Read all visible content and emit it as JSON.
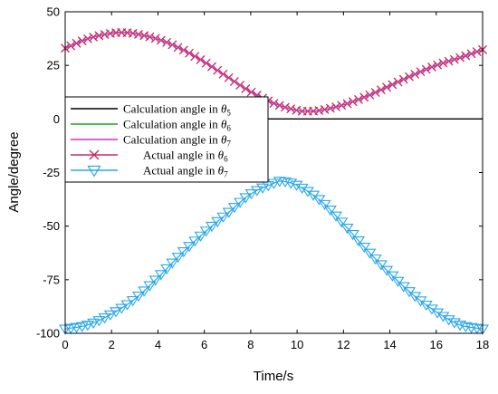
{
  "chart_data": {
    "type": "line",
    "xlabel": "Time/s",
    "ylabel": "Angle/degree",
    "xlim": [
      0,
      18
    ],
    "ylim": [
      -100,
      50
    ],
    "x_ticks": [
      "0",
      "2",
      "4",
      "6",
      "8",
      "10",
      "12",
      "14",
      "16",
      "18"
    ],
    "y_ticks": [
      "-100",
      "-75",
      "-50",
      "-25",
      "0",
      "25",
      "50"
    ],
    "legend_position": "upper-left",
    "series": [
      {
        "name": "Calculation angle in θ5",
        "legend": {
          "main": "Calculation angle in ",
          "theta": "θ",
          "sub": "5"
        },
        "color": "#000000",
        "marker": "none",
        "x": [
          0,
          18
        ],
        "y": [
          0,
          0
        ]
      },
      {
        "name": "Calculation angle in θ6",
        "legend": {
          "main": "Calculation angle in ",
          "theta": "θ",
          "sub": "6"
        },
        "color": "#1aa51a",
        "marker": "none",
        "x": [
          0,
          1,
          2,
          2.5,
          3,
          4,
          5,
          6,
          7,
          8,
          9,
          10,
          10.5,
          11,
          12,
          13,
          14,
          15,
          16,
          17,
          18
        ],
        "y": [
          33,
          37.5,
          40,
          40.3,
          39.8,
          37.2,
          32.7,
          26.6,
          19.6,
          12.7,
          7.3,
          4,
          3.6,
          4,
          6.6,
          10.6,
          15.5,
          20.5,
          25,
          28.5,
          32.3
        ]
      },
      {
        "name": "Calculation angle in θ7",
        "legend": {
          "main": "Calculation angle in ",
          "theta": "θ",
          "sub": "7"
        },
        "color": "#cc33cc",
        "marker": "none",
        "x": [
          0,
          1,
          2,
          2.5,
          3,
          4,
          5,
          6,
          7,
          8,
          9,
          10,
          10.5,
          11,
          12,
          13,
          14,
          15,
          16,
          17,
          18
        ],
        "y": [
          33,
          37.5,
          40,
          40.3,
          39.8,
          37.2,
          32.7,
          26.6,
          19.6,
          12.7,
          7.3,
          4,
          3.6,
          4,
          6.6,
          10.6,
          15.5,
          20.5,
          25,
          28.5,
          32.3
        ]
      },
      {
        "name": "Actual angle in θ6",
        "legend": {
          "main": "Actual angle in ",
          "theta": "θ",
          "sub": "6"
        },
        "color": "#c8285a",
        "marker": "x",
        "x": [
          0,
          1,
          2,
          2.5,
          3,
          4,
          5,
          6,
          7,
          8,
          9,
          10,
          10.5,
          11,
          12,
          13,
          14,
          15,
          16,
          17,
          18
        ],
        "y": [
          33,
          37.5,
          40,
          40.3,
          39.8,
          37.2,
          32.7,
          26.6,
          19.6,
          12.7,
          7.3,
          4,
          3.6,
          4,
          6.6,
          10.6,
          15.5,
          20.5,
          25,
          28.5,
          32.3
        ]
      },
      {
        "name": "Actual angle in θ7",
        "legend": {
          "main": "Actual angle in ",
          "theta": "θ",
          "sub": "7"
        },
        "color": "#2aa6e8",
        "marker": "triangle-down",
        "x": [
          0,
          1,
          2,
          3,
          4,
          5,
          6,
          7,
          8,
          9,
          9.3,
          10,
          11,
          12,
          13,
          14,
          15,
          16,
          17,
          18
        ],
        "y": [
          -98,
          -96,
          -91,
          -84,
          -74,
          -63,
          -53,
          -44,
          -35,
          -30,
          -29,
          -31,
          -38,
          -49,
          -61,
          -72,
          -82,
          -90,
          -96,
          -98
        ]
      }
    ]
  }
}
